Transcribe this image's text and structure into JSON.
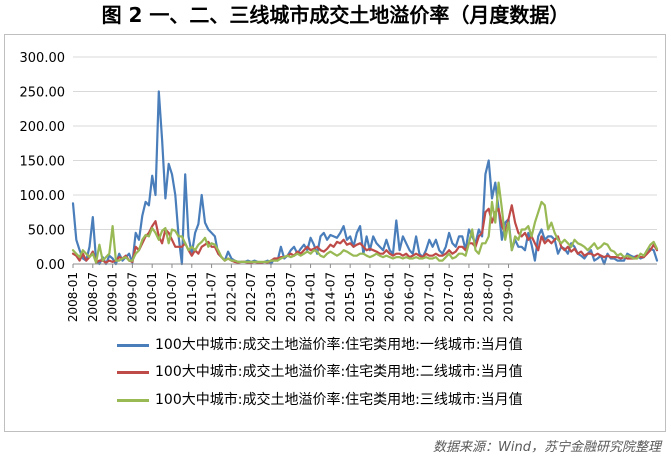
{
  "title": "图 2 一、二、三线城市成交土地溢价率（月度数据）",
  "source": "数据来源：Wind，苏宁金融研究院整理",
  "chart_data": {
    "type": "line",
    "ylim": [
      0,
      300
    ],
    "y_ticks": [
      "0.00",
      "50.00",
      "100.00",
      "150.00",
      "200.00",
      "250.00",
      "300.00"
    ],
    "x_ticks": [
      "2008-01",
      "2008-07",
      "2009-01",
      "2009-07",
      "2010-01",
      "2010-07",
      "2011-01",
      "2011-07",
      "2012-01",
      "2012-07",
      "2013-01",
      "2013-07",
      "2014-01",
      "2014-07",
      "2015-01",
      "2015-07",
      "2016-01",
      "2016-07",
      "2017-01",
      "2017-07",
      "2018-01",
      "2018-07",
      "2019-01"
    ],
    "x_start": "2008-01",
    "legend_position": "bottom",
    "grid": "horizontal",
    "series": [
      {
        "name": "100大中城市:成交土地溢价率:住宅类用地:一线城市:当月值",
        "color": "#4a7ebb",
        "values": [
          88,
          35,
          20,
          8,
          5,
          25,
          68,
          5,
          0,
          10,
          0,
          12,
          8,
          0,
          15,
          5,
          10,
          15,
          2,
          45,
          35,
          70,
          90,
          85,
          128,
          100,
          250,
          180,
          95,
          145,
          130,
          100,
          40,
          0,
          130,
          40,
          15,
          45,
          58,
          100,
          60,
          50,
          45,
          40,
          15,
          10,
          5,
          18,
          8,
          5,
          3,
          3,
          3,
          5,
          3,
          5,
          3,
          2,
          3,
          5,
          0,
          8,
          5,
          25,
          8,
          12,
          20,
          25,
          15,
          22,
          28,
          20,
          38,
          28,
          15,
          40,
          45,
          35,
          42,
          40,
          38,
          45,
          55,
          35,
          40,
          25,
          45,
          55,
          15,
          40,
          20,
          40,
          30,
          25,
          20,
          35,
          20,
          15,
          63,
          20,
          40,
          30,
          20,
          15,
          40,
          15,
          10,
          20,
          35,
          25,
          35,
          20,
          15,
          25,
          45,
          30,
          25,
          40,
          40,
          20,
          50,
          40,
          30,
          50,
          40,
          130,
          150,
          95,
          118,
          80,
          35,
          60,
          65,
          20,
          35,
          25,
          25,
          20,
          45,
          28,
          5,
          40,
          50,
          35,
          40,
          40,
          35,
          15,
          25,
          22,
          15,
          30,
          25,
          15,
          12,
          8,
          15,
          20,
          5,
          8,
          12,
          0,
          15,
          8,
          8,
          5,
          5,
          5,
          15,
          12,
          10,
          12,
          8,
          10,
          20,
          22,
          20,
          5
        ]
      },
      {
        "name": "100大中城市:成交土地溢价率:住宅类用地:二线城市:当月值",
        "color": "#be4b48",
        "values": [
          15,
          12,
          5,
          15,
          5,
          10,
          18,
          2,
          5,
          5,
          2,
          5,
          3,
          5,
          10,
          8,
          12,
          5,
          3,
          25,
          20,
          30,
          40,
          45,
          55,
          62,
          40,
          30,
          50,
          45,
          35,
          25,
          25,
          25,
          30,
          20,
          12,
          20,
          15,
          25,
          28,
          32,
          25,
          25,
          15,
          10,
          5,
          8,
          5,
          3,
          2,
          3,
          3,
          2,
          2,
          3,
          2,
          2,
          3,
          2,
          5,
          8,
          8,
          10,
          10,
          12,
          15,
          12,
          18,
          15,
          20,
          25,
          20,
          22,
          25,
          20,
          18,
          22,
          28,
          25,
          32,
          30,
          35,
          28,
          30,
          25,
          28,
          30,
          25,
          20,
          22,
          20,
          18,
          15,
          15,
          20,
          15,
          12,
          15,
          15,
          12,
          15,
          10,
          12,
          15,
          12,
          10,
          15,
          12,
          12,
          15,
          12,
          12,
          15,
          20,
          15,
          18,
          25,
          25,
          20,
          30,
          30,
          25,
          40,
          45,
          75,
          80,
          60,
          75,
          80,
          55,
          45,
          65,
          85,
          60,
          45,
          40,
          45,
          35,
          40,
          30,
          20,
          40,
          30,
          35,
          30,
          35,
          40,
          25,
          20,
          25,
          18,
          22,
          15,
          18,
          12,
          15,
          15,
          12,
          15,
          12,
          10,
          12,
          10,
          10,
          10,
          8,
          10,
          8,
          8,
          8,
          12,
          10,
          10,
          15,
          20,
          28,
          20
        ]
      },
      {
        "name": "100大中城市:成交土地溢价率:住宅类用地:三线城市:当月值",
        "color": "#98b954",
        "values": [
          20,
          15,
          10,
          20,
          15,
          10,
          15,
          2,
          28,
          5,
          10,
          15,
          55,
          5,
          5,
          8,
          10,
          5,
          5,
          15,
          20,
          35,
          42,
          40,
          52,
          45,
          35,
          48,
          52,
          30,
          50,
          48,
          40,
          40,
          30,
          20,
          25,
          20,
          28,
          32,
          38,
          25,
          30,
          28,
          20,
          10,
          5,
          8,
          5,
          5,
          3,
          3,
          3,
          3,
          3,
          3,
          3,
          3,
          3,
          3,
          5,
          5,
          5,
          8,
          10,
          12,
          10,
          12,
          15,
          12,
          15,
          18,
          15,
          20,
          18,
          12,
          10,
          15,
          18,
          15,
          12,
          15,
          20,
          18,
          15,
          12,
          12,
          15,
          15,
          12,
          10,
          12,
          15,
          12,
          10,
          12,
          10,
          8,
          10,
          10,
          8,
          10,
          8,
          8,
          10,
          8,
          8,
          10,
          8,
          8,
          10,
          5,
          5,
          10,
          15,
          8,
          10,
          15,
          15,
          12,
          30,
          50,
          20,
          15,
          30,
          30,
          40,
          90,
          60,
          118,
          80,
          35,
          60,
          20,
          40,
          35,
          50,
          50,
          55,
          40,
          60,
          75,
          90,
          85,
          50,
          60,
          45,
          35,
          30,
          35,
          30,
          25,
          35,
          30,
          28,
          25,
          20,
          25,
          30,
          22,
          25,
          30,
          28,
          20,
          18,
          12,
          15,
          10,
          12,
          10,
          8,
          8,
          15,
          12,
          20,
          28,
          32,
          22
        ]
      }
    ]
  }
}
